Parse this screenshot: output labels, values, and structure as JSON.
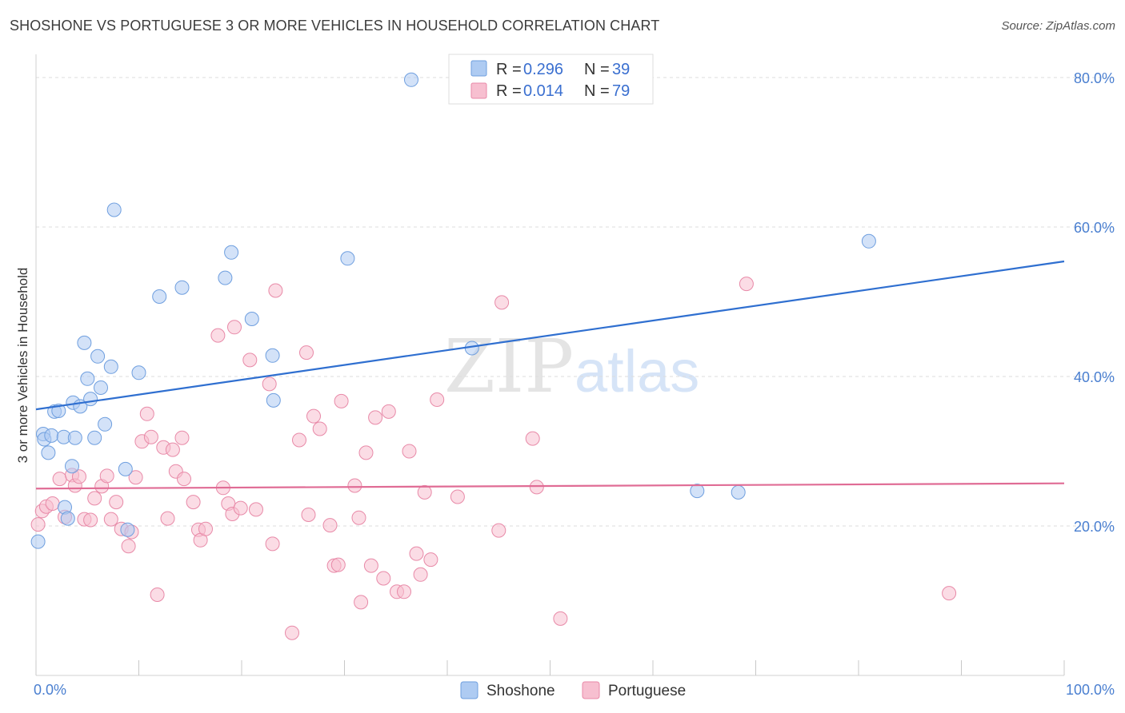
{
  "title": "SHOSHONE VS PORTUGUESE 3 OR MORE VEHICLES IN HOUSEHOLD CORRELATION CHART",
  "source": "Source: ZipAtlas.com",
  "watermark": {
    "part1": "ZIP",
    "part2": "atlas"
  },
  "colors": {
    "shoshone_fill": "#aecbf2",
    "shoshone_stroke": "#6f9fdf",
    "shoshone_line": "#2f6fd0",
    "portuguese_fill": "#f7bfd0",
    "portuguese_stroke": "#e88aa8",
    "portuguese_line": "#e06c95",
    "grid": "#dcdcdc",
    "tick_label": "#4a7fd0"
  },
  "legend": {
    "items": [
      {
        "series": "Shoshone",
        "r_label": "R = ",
        "r_value": "0.296",
        "n_label": "N = ",
        "n_value": "39"
      },
      {
        "series": "Portuguese",
        "r_label": "R = ",
        "r_value": "0.014",
        "n_label": "N = ",
        "n_value": "79"
      }
    ]
  },
  "chart_data": {
    "type": "scatter",
    "title": "SHOSHONE VS PORTUGUESE 3 OR MORE VEHICLES IN HOUSEHOLD CORRELATION CHART",
    "xlabel": "",
    "ylabel": "3 or more Vehicles in Household",
    "xlim": [
      0,
      100
    ],
    "ylim": [
      0,
      80
    ],
    "x_tick_labels": [
      {
        "value": 0,
        "label": "0.0%"
      },
      {
        "value": 100,
        "label": "100.0%"
      }
    ],
    "y_tick_labels": [
      {
        "value": 20,
        "label": "20.0%"
      },
      {
        "value": 40,
        "label": "40.0%"
      },
      {
        "value": 60,
        "label": "60.0%"
      },
      {
        "value": 80,
        "label": "80.0%"
      }
    ],
    "series": [
      {
        "name": "Shoshone",
        "r": 0.296,
        "n": 39,
        "trend": {
          "x": [
            0,
            100
          ],
          "y": [
            35.6,
            55.4
          ]
        },
        "points": [
          [
            0.2,
            17.9
          ],
          [
            0.7,
            32.3
          ],
          [
            0.8,
            31.6
          ],
          [
            1.2,
            29.8
          ],
          [
            1.5,
            32.1
          ],
          [
            1.8,
            35.3
          ],
          [
            2.2,
            35.4
          ],
          [
            2.7,
            31.9
          ],
          [
            2.8,
            22.5
          ],
          [
            3.1,
            21.0
          ],
          [
            3.5,
            28.0
          ],
          [
            3.6,
            36.5
          ],
          [
            3.8,
            31.8
          ],
          [
            4.3,
            36.0
          ],
          [
            4.7,
            44.5
          ],
          [
            5.0,
            39.7
          ],
          [
            5.3,
            37.0
          ],
          [
            5.7,
            31.8
          ],
          [
            6.0,
            42.7
          ],
          [
            6.3,
            38.5
          ],
          [
            6.7,
            33.6
          ],
          [
            7.3,
            41.3
          ],
          [
            7.6,
            62.3
          ],
          [
            8.7,
            27.6
          ],
          [
            8.9,
            19.5
          ],
          [
            10.0,
            40.5
          ],
          [
            12.0,
            50.7
          ],
          [
            14.2,
            51.9
          ],
          [
            18.4,
            53.2
          ],
          [
            19.0,
            56.6
          ],
          [
            21.0,
            47.7
          ],
          [
            23.0,
            42.8
          ],
          [
            23.1,
            36.8
          ],
          [
            30.3,
            55.8
          ],
          [
            36.5,
            79.7
          ],
          [
            42.4,
            43.8
          ],
          [
            64.3,
            24.7
          ],
          [
            68.3,
            24.5
          ],
          [
            81.0,
            58.1
          ]
        ]
      },
      {
        "name": "Portuguese",
        "r": 0.014,
        "n": 79,
        "trend": {
          "x": [
            0,
            100
          ],
          "y": [
            25.0,
            25.7
          ]
        },
        "points": [
          [
            0.2,
            20.2
          ],
          [
            0.6,
            22.0
          ],
          [
            1.0,
            22.6
          ],
          [
            1.6,
            23.0
          ],
          [
            2.3,
            26.3
          ],
          [
            2.8,
            21.2
          ],
          [
            3.5,
            26.8
          ],
          [
            3.8,
            25.4
          ],
          [
            4.2,
            26.6
          ],
          [
            4.7,
            20.9
          ],
          [
            5.3,
            20.8
          ],
          [
            5.7,
            23.7
          ],
          [
            6.4,
            25.3
          ],
          [
            6.9,
            26.7
          ],
          [
            7.3,
            20.9
          ],
          [
            7.8,
            23.2
          ],
          [
            8.3,
            19.6
          ],
          [
            9.0,
            17.3
          ],
          [
            9.3,
            19.2
          ],
          [
            9.7,
            26.5
          ],
          [
            10.3,
            31.3
          ],
          [
            10.8,
            35.0
          ],
          [
            11.2,
            31.9
          ],
          [
            11.8,
            10.8
          ],
          [
            12.4,
            30.5
          ],
          [
            12.8,
            21.0
          ],
          [
            13.3,
            30.2
          ],
          [
            13.6,
            27.3
          ],
          [
            14.4,
            26.3
          ],
          [
            14.2,
            31.8
          ],
          [
            15.3,
            23.2
          ],
          [
            15.8,
            19.5
          ],
          [
            16.0,
            18.1
          ],
          [
            16.5,
            19.6
          ],
          [
            17.7,
            45.5
          ],
          [
            18.2,
            25.1
          ],
          [
            18.7,
            23.0
          ],
          [
            19.1,
            21.6
          ],
          [
            19.3,
            46.6
          ],
          [
            19.9,
            22.4
          ],
          [
            20.8,
            42.2
          ],
          [
            21.4,
            22.2
          ],
          [
            22.7,
            39.0
          ],
          [
            23.0,
            17.6
          ],
          [
            23.3,
            51.5
          ],
          [
            24.9,
            5.7
          ],
          [
            25.6,
            31.5
          ],
          [
            26.3,
            43.2
          ],
          [
            26.5,
            21.5
          ],
          [
            27.0,
            34.7
          ],
          [
            27.6,
            33.0
          ],
          [
            28.6,
            20.1
          ],
          [
            29.0,
            14.7
          ],
          [
            29.4,
            14.8
          ],
          [
            29.7,
            36.7
          ],
          [
            31.0,
            25.4
          ],
          [
            31.4,
            21.1
          ],
          [
            31.6,
            9.8
          ],
          [
            32.1,
            29.8
          ],
          [
            32.6,
            14.7
          ],
          [
            33.0,
            34.5
          ],
          [
            33.8,
            13.0
          ],
          [
            34.3,
            35.3
          ],
          [
            35.1,
            11.2
          ],
          [
            35.8,
            11.2
          ],
          [
            36.3,
            30.0
          ],
          [
            37.0,
            16.3
          ],
          [
            37.4,
            13.5
          ],
          [
            37.8,
            24.5
          ],
          [
            38.4,
            15.5
          ],
          [
            39.0,
            36.9
          ],
          [
            41.0,
            23.9
          ],
          [
            45.0,
            19.4
          ],
          [
            45.3,
            49.9
          ],
          [
            48.3,
            31.7
          ],
          [
            48.7,
            25.2
          ],
          [
            51.0,
            7.6
          ],
          [
            69.1,
            52.4
          ],
          [
            88.8,
            11.0
          ]
        ]
      }
    ]
  },
  "bottom_legend": [
    "Shoshone",
    "Portuguese"
  ]
}
